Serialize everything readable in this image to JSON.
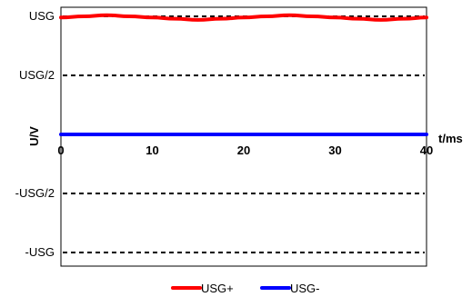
{
  "chart_data": {
    "type": "line",
    "xlabel": "t/ms",
    "ylabel": "U/V",
    "xlim": [
      0,
      40
    ],
    "ylim": [
      -1,
      1
    ],
    "grid": false,
    "legend_position": "bottom-center",
    "x_ticks": [
      {
        "value": 0,
        "label": "0"
      },
      {
        "value": 10,
        "label": "10"
      },
      {
        "value": 20,
        "label": "20"
      },
      {
        "value": 30,
        "label": "30"
      },
      {
        "value": 40,
        "label": "40"
      }
    ],
    "y_ticks": [
      {
        "value": 1,
        "label": "USG"
      },
      {
        "value": 0.5,
        "label": "USG/2"
      },
      {
        "value": -0.5,
        "label": "-USG/2"
      },
      {
        "value": -1,
        "label": "-USG"
      }
    ],
    "reference_lines": [
      {
        "y": 1,
        "style": "dashed",
        "color": "#000000"
      },
      {
        "y": 0.5,
        "style": "dashed",
        "color": "#000000"
      },
      {
        "y": -0.5,
        "style": "dashed",
        "color": "#000000"
      },
      {
        "y": -1,
        "style": "dashed",
        "color": "#000000"
      }
    ],
    "series": [
      {
        "name": "USG+",
        "color": "#ff0000",
        "x": [
          0,
          2.5,
          5,
          7.5,
          10,
          12.5,
          15,
          17.5,
          20,
          22.5,
          25,
          27.5,
          30,
          32.5,
          35,
          37.5,
          40
        ],
        "y": [
          0.99,
          1.0,
          1.01,
          1.0,
          0.99,
          0.98,
          0.97,
          0.98,
          0.99,
          1.0,
          1.01,
          1.0,
          0.99,
          0.98,
          0.97,
          0.98,
          0.99
        ]
      },
      {
        "name": "USG-",
        "color": "#0000ff",
        "x": [
          0,
          40
        ],
        "y": [
          0,
          0
        ]
      }
    ]
  }
}
